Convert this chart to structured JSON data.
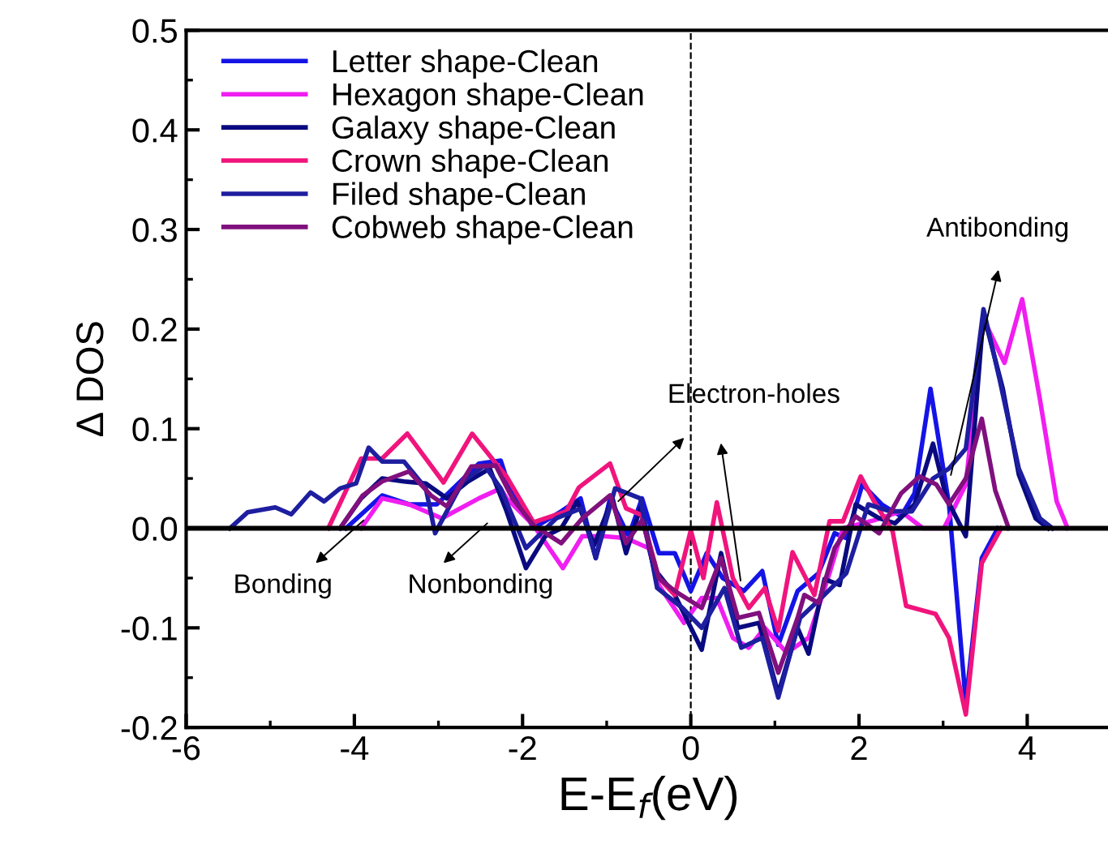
{
  "chart_data": {
    "type": "line",
    "xlabel": "E-E$_{f}$(eV)",
    "ylabel": "Δ DOS",
    "xlim": [
      -6,
      5
    ],
    "xticks": [
      -6,
      -4,
      -2,
      0,
      2,
      4
    ],
    "ylim": [
      -0.2,
      0.5
    ],
    "yticks": [
      -0.2,
      -0.1,
      {
        "value": 0,
        "label": "0.0"
      },
      0.1,
      0.2,
      0.3,
      0.4,
      0.5
    ],
    "grid": false,
    "legend": "top left",
    "line_style": "solid",
    "marker": "none",
    "ref_lines": [
      {
        "axis": "x",
        "value": 0,
        "line_style": "dashed",
        "color": "#000000"
      },
      {
        "axis": "y",
        "value": 0,
        "line_style": "solid",
        "color": "#000000"
      }
    ],
    "annotations": [
      "Bonding",
      "Nonbonding",
      "Electron-holes",
      "Antibonding"
    ],
    "series": [
      {
        "name": "Letter shape-Clean",
        "color": "#1414e6",
        "x": [
          -4.1,
          -3.67,
          -3.35,
          -3.02,
          -2.52,
          -2.26,
          -2.19,
          -1.87,
          -1.54,
          -1.31,
          -1.13,
          -0.96,
          -0.74,
          -0.58,
          -0.38,
          -0.19,
          0,
          0.19,
          0.38,
          0.63,
          0.85,
          1.04,
          1.27,
          1.52,
          1.71,
          1.85,
          2.04,
          2.27,
          2.5,
          2.66,
          2.85,
          3.07,
          3.27,
          3.46,
          3.65
        ],
        "values": [
          0,
          0.033,
          0.024,
          0.024,
          0.065,
          0.068,
          0.05,
          0,
          0.017,
          0.03,
          -0.03,
          0.03,
          -0.008,
          0.03,
          -0.025,
          -0.025,
          -0.063,
          -0.025,
          -0.05,
          -0.063,
          -0.043,
          -0.117,
          -0.063,
          -0.045,
          -0.005,
          -0.01,
          0.044,
          0.024,
          0.012,
          0.035,
          0.14,
          0.024,
          -0.175,
          -0.03,
          0
        ]
      },
      {
        "name": "Hexagon shape-Clean",
        "color": "#f01ef0",
        "x": [
          -3.92,
          -3.67,
          -3.35,
          -2.96,
          -2.52,
          -2.26,
          -2.19,
          -1.87,
          -1.52,
          -1.29,
          -1.04,
          -0.77,
          -0.5,
          -0.38,
          -0.08,
          0.13,
          0.31,
          0.5,
          0.69,
          0.88,
          1.14,
          1.4,
          1.65,
          1.81,
          2.18,
          2.5,
          2.76,
          3.01,
          3.27,
          3.48,
          3.73,
          3.94,
          4.15,
          4.35,
          4.48
        ],
        "values": [
          0,
          0.03,
          0.024,
          0.01,
          0.03,
          0.04,
          0.03,
          0.003,
          -0.04,
          -0.008,
          -0.008,
          -0.01,
          -0.02,
          -0.057,
          -0.095,
          -0.07,
          -0.07,
          -0.11,
          -0.12,
          -0.1,
          -0.125,
          -0.11,
          -0.045,
          0,
          0.008,
          0.017,
          0,
          0,
          0.044,
          0.21,
          0.166,
          0.23,
          0.13,
          0.027,
          0
        ]
      },
      {
        "name": "Galaxy shape-Clean",
        "color": "#0a0a80",
        "x": [
          -4.17,
          -3.92,
          -3.67,
          -3.41,
          -3.15,
          -2.9,
          -2.65,
          -2.39,
          -2.19,
          -1.96,
          -1.73,
          -1.54,
          -1.35,
          -1.15,
          -0.93,
          -0.77,
          -0.6,
          -0.44,
          -0.19,
          0.13,
          0.36,
          0.56,
          0.81,
          1.04,
          1.27,
          1.4,
          1.59,
          1.77,
          1.96,
          2.24,
          2.43,
          2.66,
          2.88,
          3.04,
          3.27,
          3.48,
          3.71,
          3.9,
          4.1,
          4.25
        ],
        "values": [
          0,
          0.03,
          0.05,
          0.047,
          0.045,
          0.03,
          0.047,
          0.06,
          0.017,
          -0.04,
          -0.008,
          0,
          0.027,
          -0.017,
          0.03,
          -0.025,
          0.02,
          -0.04,
          -0.067,
          -0.122,
          -0.025,
          -0.1,
          -0.095,
          -0.166,
          -0.1,
          -0.126,
          -0.051,
          -0.057,
          0.024,
          0.01,
          0.005,
          0.024,
          0.085,
          0.03,
          -0.008,
          0.215,
          0.14,
          0.054,
          0.01,
          0
        ]
      },
      {
        "name": "Crown shape-Clean",
        "color": "#f0147d",
        "x": [
          -4.31,
          -3.92,
          -3.67,
          -3.37,
          -2.94,
          -2.6,
          -2.24,
          -2.19,
          -1.87,
          -1.48,
          -1.33,
          -0.96,
          -0.77,
          -0.58,
          -0.38,
          -0.19,
          0,
          0.15,
          0.31,
          0.5,
          0.69,
          0.88,
          1.04,
          1.21,
          1.47,
          1.65,
          1.81,
          2.02,
          2.18,
          2.4,
          2.56,
          2.91,
          3.07,
          3.27,
          3.46,
          3.69
        ],
        "values": [
          0,
          0.07,
          0.07,
          0.095,
          0.046,
          0.095,
          0.057,
          0.052,
          0.006,
          0.017,
          0.041,
          0.065,
          0.02,
          0.013,
          -0.05,
          -0.067,
          -0.002,
          -0.05,
          0.026,
          -0.05,
          -0.08,
          -0.06,
          -0.103,
          -0.024,
          -0.067,
          0.007,
          0.007,
          0.052,
          0.027,
          -0.003,
          -0.078,
          -0.086,
          -0.11,
          -0.187,
          -0.035,
          0
        ]
      },
      {
        "name": "Filed shape-Clean",
        "color": "#1e1ea0",
        "x": [
          -5.48,
          -5.27,
          -4.94,
          -4.75,
          -4.52,
          -4.36,
          -4.17,
          -3.98,
          -3.83,
          -3.67,
          -3.41,
          -3.15,
          -3.04,
          -2.71,
          -2.45,
          -2.26,
          -1.96,
          -1.6,
          -1.3,
          -1.13,
          -0.9,
          -0.6,
          -0.4,
          -0.1,
          0.13,
          0.4,
          0.6,
          0.85,
          1.04,
          1.3,
          1.55,
          1.85,
          2.11,
          2.37,
          2.63,
          2.88,
          3.07,
          3.27,
          3.48,
          3.67,
          3.9,
          4.15,
          4.3
        ],
        "values": [
          0,
          0.016,
          0.021,
          0.014,
          0.036,
          0.027,
          0.04,
          0.045,
          0.081,
          0.067,
          0.067,
          0.04,
          -0.005,
          0.047,
          0.063,
          0.04,
          -0.02,
          0.01,
          0.02,
          -0.03,
          0.04,
          0.03,
          -0.06,
          -0.08,
          -0.1,
          -0.06,
          -0.12,
          -0.11,
          -0.17,
          -0.09,
          -0.07,
          -0.045,
          0.024,
          0.017,
          0.017,
          0.05,
          0.06,
          0.08,
          0.22,
          0.15,
          0.06,
          0.01,
          0
        ]
      },
      {
        "name": "Cobweb shape-Clean",
        "color": "#80107d",
        "x": [
          -4.17,
          -3.9,
          -3.67,
          -3.35,
          -3.09,
          -2.9,
          -2.61,
          -2.32,
          -2.12,
          -1.87,
          -1.54,
          -1.29,
          -0.96,
          -0.77,
          -0.58,
          -0.38,
          -0.19,
          0.13,
          0.36,
          0.56,
          0.81,
          1.04,
          1.27,
          1.35,
          1.52,
          1.71,
          1.96,
          2.24,
          2.5,
          2.72,
          2.92,
          3.07,
          3.27,
          3.46,
          3.62,
          3.78
        ],
        "values": [
          0,
          0.033,
          0.047,
          0.057,
          0.033,
          0.022,
          0.062,
          0.063,
          0.03,
          0.003,
          -0.015,
          0.01,
          0.033,
          -0.015,
          0.008,
          -0.05,
          -0.063,
          -0.08,
          -0.03,
          -0.09,
          -0.085,
          -0.145,
          -0.09,
          -0.067,
          -0.075,
          -0.02,
          0.012,
          -0.005,
          0.035,
          0.052,
          0.044,
          0.024,
          0.05,
          0.11,
          0.038,
          0
        ]
      }
    ]
  }
}
